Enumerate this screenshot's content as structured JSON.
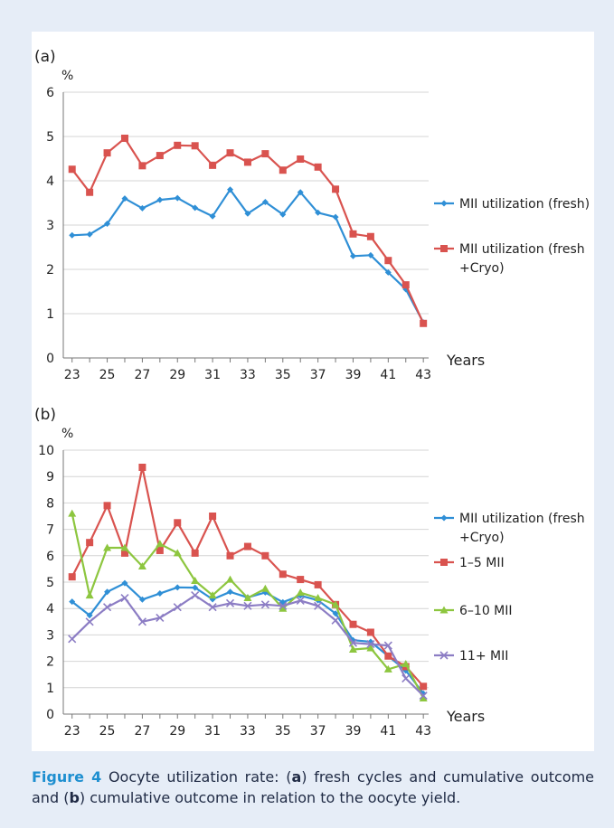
{
  "caption": {
    "label": "Figure 4",
    "p1": " Oocyte utilization rate: (",
    "a": "a",
    "p2": ") fresh cycles and cumulative outcome and (",
    "b": "b",
    "p3": ") cumulative outcome in relation to the oocyte yield."
  },
  "chart_data": [
    {
      "panel_label": "(a)",
      "type": "line",
      "ylabel": "%",
      "xlabel": "Years",
      "ylim": [
        0,
        6
      ],
      "yticks": [
        "0",
        "1",
        "2",
        "3",
        "4",
        "5",
        "6"
      ],
      "x": [
        23,
        24,
        25,
        26,
        27,
        28,
        29,
        30,
        31,
        32,
        33,
        34,
        35,
        36,
        37,
        38,
        39,
        40,
        41,
        42,
        43
      ],
      "xticks": [
        "23",
        "25",
        "27",
        "29",
        "31",
        "33",
        "35",
        "37",
        "39",
        "41",
        "43"
      ],
      "grid": true,
      "legend_position": "right",
      "series": [
        {
          "name": "MII utilization (fresh)",
          "legend_lines": [
            "MII utilization (fresh)"
          ],
          "color": "#2f8fd6",
          "marker": "diamond",
          "values": [
            2.77,
            2.79,
            3.03,
            3.6,
            3.38,
            3.57,
            3.61,
            3.39,
            3.2,
            3.8,
            3.26,
            3.52,
            3.24,
            3.74,
            3.28,
            3.18,
            2.3,
            2.32,
            1.93,
            1.55,
            0.8
          ]
        },
        {
          "name": "MII utilization (fresh +Cryo)",
          "legend_lines": [
            "MII utilization (fresh",
            "+Cryo)"
          ],
          "color": "#d9534f",
          "marker": "square",
          "values": [
            4.26,
            3.74,
            4.63,
            4.96,
            4.34,
            4.57,
            4.8,
            4.79,
            4.35,
            4.63,
            4.42,
            4.61,
            4.24,
            4.49,
            4.31,
            3.81,
            2.8,
            2.74,
            2.2,
            1.65,
            0.78
          ]
        }
      ]
    },
    {
      "panel_label": "(b)",
      "type": "line",
      "ylabel": "%",
      "xlabel": "Years",
      "ylim": [
        0,
        10
      ],
      "yticks": [
        "0",
        "1",
        "2",
        "3",
        "4",
        "5",
        "6",
        "7",
        "8",
        "9",
        "10"
      ],
      "x": [
        23,
        24,
        25,
        26,
        27,
        28,
        29,
        30,
        31,
        32,
        33,
        34,
        35,
        36,
        37,
        38,
        39,
        40,
        41,
        42,
        43
      ],
      "xticks": [
        "23",
        "25",
        "27",
        "29",
        "31",
        "33",
        "35",
        "37",
        "39",
        "41",
        "43"
      ],
      "grid": true,
      "legend_position": "right",
      "series": [
        {
          "name": "MII utilization (fresh +Cryo)",
          "legend_lines": [
            "MII utilization (fresh",
            "+Cryo)"
          ],
          "color": "#2f8fd6",
          "marker": "diamond",
          "values": [
            4.26,
            3.74,
            4.63,
            4.96,
            4.34,
            4.57,
            4.8,
            4.79,
            4.35,
            4.63,
            4.42,
            4.61,
            4.24,
            4.49,
            4.31,
            3.81,
            2.8,
            2.74,
            2.2,
            1.65,
            0.78
          ]
        },
        {
          "name": "1–5 MII",
          "legend_lines": [
            "1–5 MII"
          ],
          "color": "#d9534f",
          "marker": "square",
          "values": [
            5.2,
            6.5,
            7.9,
            6.1,
            9.35,
            6.2,
            7.25,
            6.1,
            7.5,
            6.0,
            6.35,
            6.0,
            5.3,
            5.1,
            4.9,
            4.15,
            3.4,
            3.1,
            2.2,
            1.8,
            1.05
          ]
        },
        {
          "name": "6–10 MII",
          "legend_lines": [
            "6–10 MII"
          ],
          "color": "#8dc63f",
          "marker": "triangle",
          "values": [
            7.6,
            4.5,
            6.3,
            6.3,
            5.6,
            6.45,
            6.1,
            5.05,
            4.5,
            5.1,
            4.4,
            4.75,
            4.0,
            4.6,
            4.4,
            4.15,
            2.45,
            2.5,
            1.7,
            1.9,
            0.6
          ]
        },
        {
          "name": "11+ MII",
          "legend_lines": [
            "11+ MII"
          ],
          "color": "#8c7dc4",
          "marker": "x",
          "values": [
            2.85,
            3.5,
            4.05,
            4.4,
            3.5,
            3.65,
            4.05,
            4.5,
            4.05,
            4.2,
            4.1,
            4.15,
            4.1,
            4.3,
            4.1,
            3.55,
            2.7,
            2.65,
            2.6,
            1.35,
            0.7
          ]
        }
      ]
    }
  ]
}
